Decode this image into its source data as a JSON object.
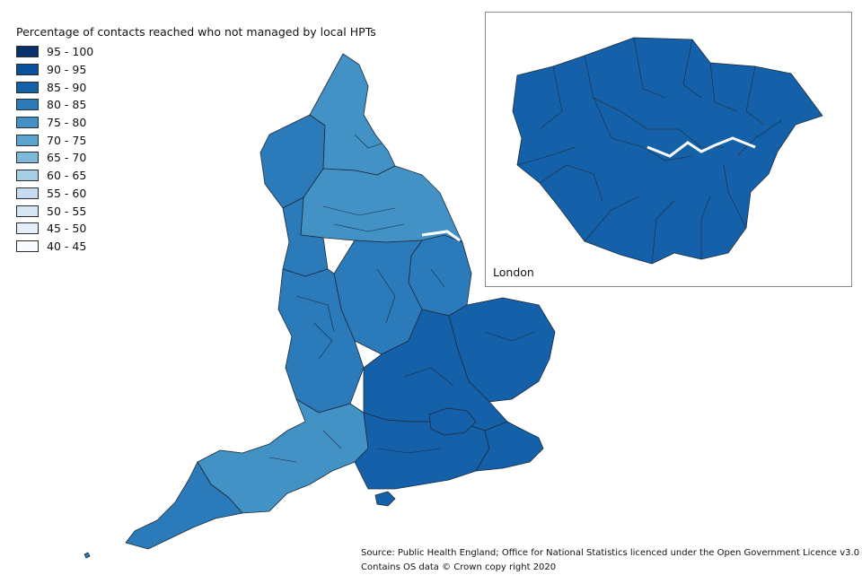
{
  "legend": {
    "title": "Percentage of contacts reached who not managed by local HPTs",
    "classes": [
      {
        "label": "95 - 100",
        "color": "#08306b"
      },
      {
        "label": "90 - 95",
        "color": "#08519c"
      },
      {
        "label": "85 - 90",
        "color": "#1561a9"
      },
      {
        "label": "80 - 85",
        "color": "#2b7bba"
      },
      {
        "label": "75 - 80",
        "color": "#4292c6"
      },
      {
        "label": "70 - 75",
        "color": "#5ba3d0"
      },
      {
        "label": "65 - 70",
        "color": "#7fb9da"
      },
      {
        "label": "60 - 65",
        "color": "#a6cee4"
      },
      {
        "label": "55 - 60",
        "color": "#c6dbef"
      },
      {
        "label": "50 - 55",
        "color": "#d6e6f4"
      },
      {
        "label": "45 - 50",
        "color": "#e3eef9"
      },
      {
        "label": "40 - 45",
        "color": "#f7fbff"
      }
    ]
  },
  "inset": {
    "label": "London"
  },
  "source": {
    "line1": "Source: Public Health England; Office for National Statistics licenced under the Open Government Licence v3.0",
    "line2": "Contains OS data © Crown copy right 2020"
  },
  "map_regions": {
    "north_west_cumbria": "75 - 80",
    "north_east": "75 - 80",
    "cumbria": "80 - 85",
    "yorkshire": "75 - 80",
    "lancashire": "80 - 85",
    "east_midlands": "80 - 85",
    "lincolnshire": "80 - 85",
    "west_midlands": "80 - 85",
    "norfolk_suffolk": "85 - 90",
    "east_of_england": "85 - 90",
    "south_west": "75 - 80",
    "cornwall": "80 - 85",
    "south_coast": "85 - 90",
    "kent": "85 - 90",
    "london": "85 - 90"
  }
}
